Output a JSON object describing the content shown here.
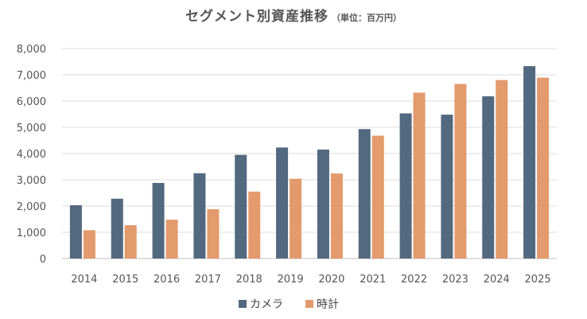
{
  "chart_data": {
    "type": "bar",
    "title": "セグメント別資産推移",
    "subtitle": "（単位：百万円）",
    "xlabel": "",
    "ylabel": "",
    "categories": [
      "2014",
      "2015",
      "2016",
      "2017",
      "2018",
      "2019",
      "2020",
      "2021",
      "2022",
      "2023",
      "2024",
      "2025"
    ],
    "series": [
      {
        "name": "カメラ",
        "color": "#53697f",
        "values": [
          2030,
          2280,
          2880,
          3250,
          3950,
          4230,
          4150,
          4930,
          5530,
          5480,
          6180,
          7330
        ]
      },
      {
        "name": "時計",
        "color": "#e39a6c",
        "values": [
          1080,
          1270,
          1480,
          1880,
          2550,
          3040,
          3240,
          4680,
          6320,
          6650,
          6800,
          6890
        ]
      }
    ],
    "ylim": [
      0,
      8000
    ],
    "yticks": [
      "0",
      "1,000",
      "2,000",
      "3,000",
      "4,000",
      "5,000",
      "6,000",
      "7,000",
      "8,000"
    ],
    "grid": true,
    "legend_position": "bottom"
  }
}
